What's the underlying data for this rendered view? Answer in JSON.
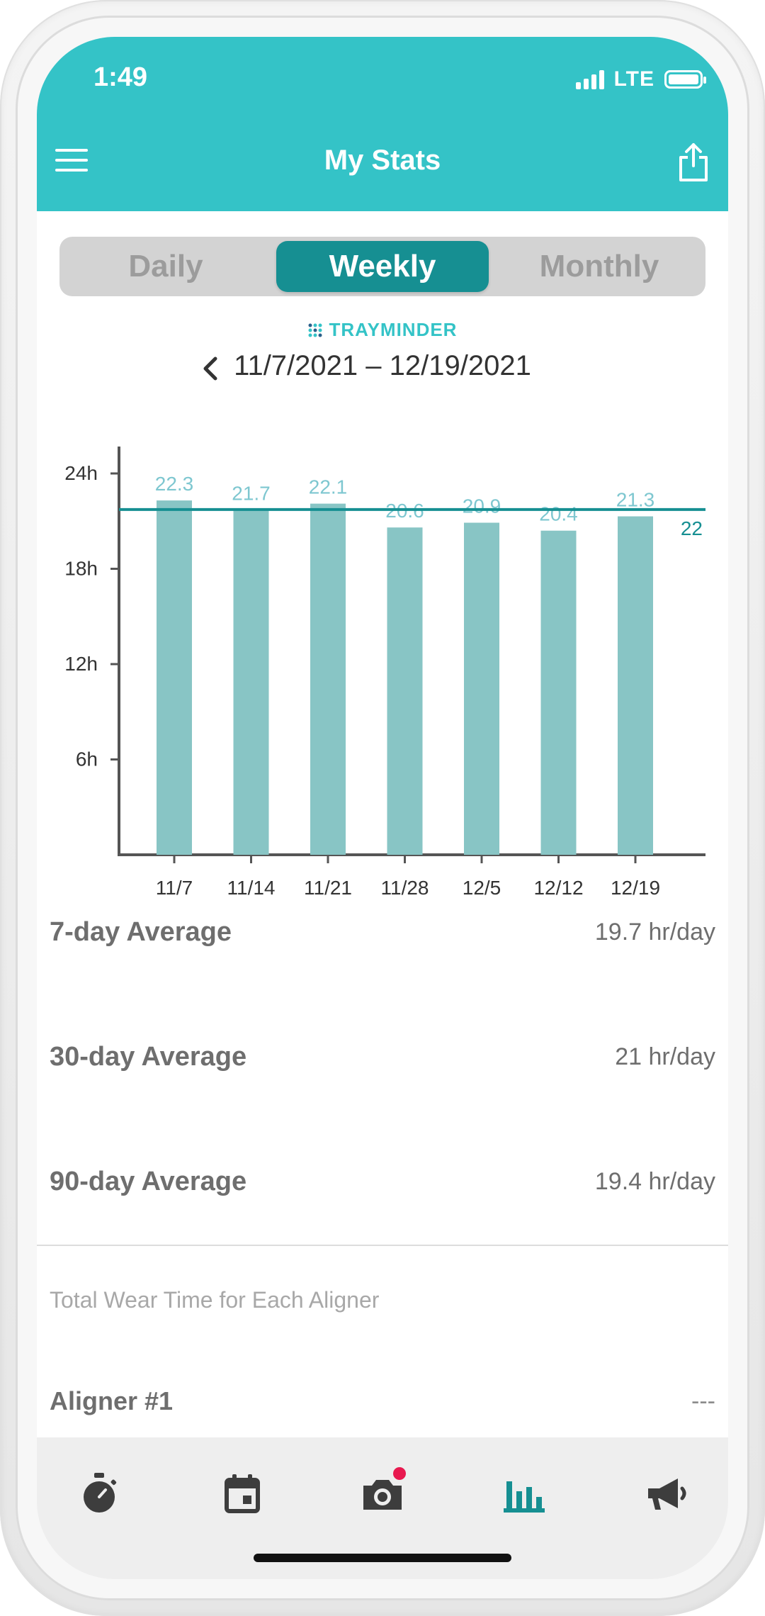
{
  "status_bar": {
    "time": "1:49",
    "network": "LTE"
  },
  "header": {
    "title": "My Stats"
  },
  "segments": [
    {
      "label": "Daily",
      "active": false
    },
    {
      "label": "Weekly",
      "active": true
    },
    {
      "label": "Monthly",
      "active": false
    }
  ],
  "brand": "TRAYMINDER",
  "date_range": "11/7/2021 – 12/19/2021",
  "chart_data": {
    "type": "bar",
    "categories": [
      "11/7",
      "11/14",
      "11/21",
      "11/28",
      "12/5",
      "12/12",
      "12/19"
    ],
    "values": [
      22.3,
      21.7,
      22.1,
      20.6,
      20.9,
      20.4,
      21.3
    ],
    "value_labels": [
      "22.3",
      "21.7",
      "22.1",
      "20.6",
      "20.9",
      "20.4",
      "21.3"
    ],
    "y_ticks": [
      "6h",
      "12h",
      "18h",
      "24h"
    ],
    "ylim": [
      0,
      25
    ],
    "target_line": {
      "value": 22,
      "label": "22"
    },
    "colors": {
      "bar": "#88c5c5",
      "value_label": "#7ec7d0",
      "target": "#168f92",
      "axis": "#555555"
    }
  },
  "averages": [
    {
      "label": "7-day Average",
      "value": "19.7 hr/day"
    },
    {
      "label": "30-day Average",
      "value": "21 hr/day"
    },
    {
      "label": "90-day Average",
      "value": "19.4 hr/day"
    }
  ],
  "section_caption": "Total Wear Time for Each Aligner",
  "aligners": [
    {
      "label": "Aligner #1",
      "value": "---"
    }
  ],
  "tabbar": {
    "items": [
      {
        "icon": "stopwatch-icon",
        "active": false
      },
      {
        "icon": "calendar-icon",
        "active": false
      },
      {
        "icon": "camera-icon",
        "active": false,
        "badge": true
      },
      {
        "icon": "bar-chart-icon",
        "active": true
      },
      {
        "icon": "megaphone-icon",
        "active": false
      }
    ]
  },
  "colors": {
    "accent": "#34c3c7",
    "accent_dark": "#168f92",
    "badge": "#e8194f"
  }
}
